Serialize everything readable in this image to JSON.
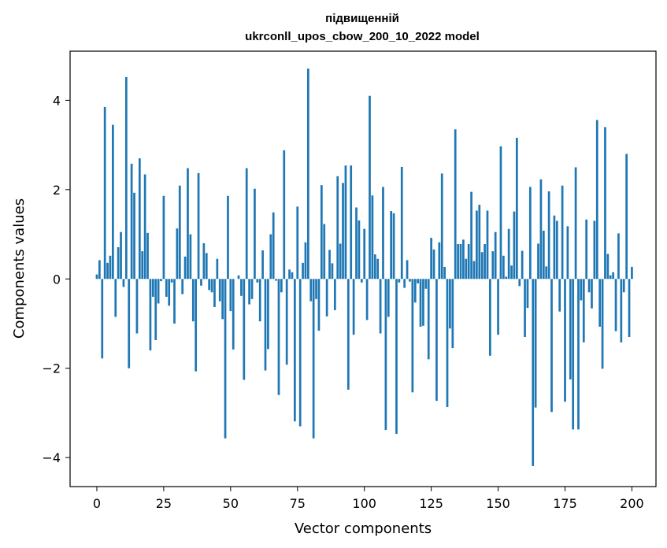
{
  "chart_data": {
    "type": "bar",
    "title": "підвищенній",
    "subtitle": "ukrconll_upos_cbow_200_10_2022 model",
    "xlabel": "Vector components",
    "ylabel": "Components values",
    "xlim": [
      -10,
      209
    ],
    "ylim": [
      -4.65,
      5.1
    ],
    "xticks": [
      0,
      25,
      50,
      75,
      100,
      125,
      150,
      175,
      200
    ],
    "xtick_labels": [
      "0",
      "25",
      "50",
      "75",
      "100",
      "125",
      "150",
      "175",
      "200"
    ],
    "yticks": [
      -4,
      -2,
      0,
      2,
      4
    ],
    "ytick_labels": [
      "−4",
      "−2",
      "0",
      "2",
      "4"
    ],
    "bar_color": "#1f77b4",
    "grid": false,
    "values": [
      0.1,
      0.42,
      -1.78,
      3.85,
      0.36,
      0.52,
      3.45,
      -0.85,
      0.71,
      1.05,
      -0.18,
      4.52,
      -2.0,
      2.58,
      1.93,
      -1.22,
      2.7,
      0.62,
      2.34,
      1.03,
      -1.6,
      -0.4,
      -1.37,
      -0.55,
      -0.05,
      1.86,
      -0.4,
      -0.6,
      -0.08,
      -1.0,
      1.13,
      2.09,
      -0.34,
      0.5,
      2.48,
      1.0,
      -0.95,
      -2.07,
      2.37,
      -0.15,
      0.8,
      0.58,
      -0.25,
      -0.3,
      -0.63,
      0.45,
      -0.5,
      -0.9,
      -3.57,
      1.86,
      -0.72,
      -1.58,
      0.0,
      0.08,
      -0.38,
      -2.26,
      2.48,
      -0.57,
      -0.45,
      2.02,
      -0.08,
      -0.95,
      0.64,
      -2.05,
      -1.57,
      1.0,
      1.49,
      -0.04,
      -2.6,
      -0.3,
      2.88,
      -1.92,
      0.21,
      0.15,
      -3.19,
      1.62,
      -3.3,
      0.36,
      0.82,
      4.71,
      -0.5,
      -3.57,
      -0.45,
      -1.16,
      2.1,
      1.23,
      -0.84,
      0.65,
      0.35,
      -0.7,
      2.3,
      0.79,
      2.15,
      2.54,
      -2.48,
      2.54,
      -1.25,
      1.6,
      1.31,
      -0.08,
      1.12,
      -0.92,
      4.1,
      1.87,
      0.55,
      0.45,
      -1.22,
      2.06,
      -3.38,
      -0.85,
      1.52,
      1.47,
      -3.47,
      -0.08,
      2.51,
      -0.2,
      0.42,
      -0.06,
      -2.54,
      -0.53,
      -0.1,
      -1.07,
      -1.05,
      -0.22,
      -1.8,
      0.92,
      0.66,
      -2.73,
      0.82,
      2.36,
      0.27,
      -2.87,
      -1.11,
      -1.55,
      3.35,
      0.78,
      0.78,
      0.88,
      0.45,
      0.78,
      1.95,
      0.4,
      1.53,
      1.66,
      0.6,
      0.78,
      1.53,
      -1.72,
      0.62,
      1.05,
      -1.25,
      2.97,
      0.52,
      0.05,
      1.12,
      0.3,
      1.51,
      3.16,
      -0.16,
      0.63,
      -1.3,
      -0.65,
      2.06,
      -4.19,
      -2.88,
      0.79,
      2.23,
      1.08,
      0.28,
      1.96,
      -2.98,
      1.42,
      1.3,
      -0.73,
      2.09,
      -2.75,
      1.18,
      -2.25,
      -3.37,
      2.5,
      -3.37,
      -0.48,
      -1.42,
      1.33,
      -0.3,
      -0.66,
      1.3,
      3.56,
      -1.07,
      -2.01,
      3.4,
      0.56,
      0.08,
      0.15,
      -1.17,
      1.02,
      -1.42,
      -0.3,
      2.8,
      -1.3,
      0.27
    ]
  }
}
